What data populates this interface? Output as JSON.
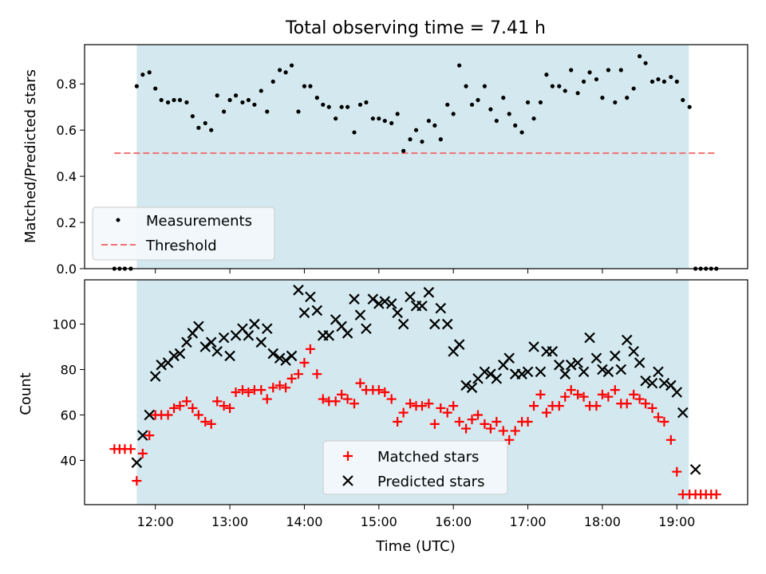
{
  "figure": {
    "title": "Total observing time = 7.41 h"
  },
  "chart_data": [
    {
      "type": "scatter",
      "ylabel": "Matched/Predicted stars",
      "xlabel": "",
      "x_unit": "hours (UTC)",
      "xlim": [
        11.05,
        19.95
      ],
      "ylim": [
        0.0,
        0.97
      ],
      "yticks": [
        0.0,
        0.2,
        0.4,
        0.6,
        0.8
      ],
      "ytick_labels": [
        "0.0",
        "0.2",
        "0.4",
        "0.6",
        "0.8"
      ],
      "shaded_interval": [
        11.75,
        19.16
      ],
      "shade_color": "#d3e9ef",
      "legend": {
        "placement": "lower-left"
      },
      "series": [
        {
          "name": "Measurements",
          "kind": "points",
          "color": "#000000",
          "x": [
            11.45,
            11.52,
            11.59,
            11.67,
            11.75,
            11.83,
            11.92,
            12.0,
            12.08,
            12.17,
            12.25,
            12.33,
            12.42,
            12.5,
            12.58,
            12.67,
            12.75,
            12.83,
            12.92,
            13.0,
            13.08,
            13.17,
            13.25,
            13.33,
            13.42,
            13.5,
            13.58,
            13.67,
            13.75,
            13.83,
            13.92,
            14.0,
            14.08,
            14.17,
            14.25,
            14.33,
            14.42,
            14.5,
            14.58,
            14.67,
            14.75,
            14.83,
            14.92,
            15.0,
            15.08,
            15.17,
            15.25,
            15.33,
            15.42,
            15.5,
            15.58,
            15.67,
            15.75,
            15.83,
            15.92,
            16.0,
            16.08,
            16.17,
            16.25,
            16.33,
            16.42,
            16.5,
            16.58,
            16.67,
            16.75,
            16.83,
            16.92,
            17.0,
            17.08,
            17.17,
            17.25,
            17.33,
            17.42,
            17.5,
            17.58,
            17.67,
            17.75,
            17.83,
            17.92,
            18.0,
            18.08,
            18.17,
            18.25,
            18.33,
            18.42,
            18.5,
            18.58,
            18.67,
            18.75,
            18.83,
            18.92,
            19.0,
            19.08,
            19.17,
            19.25,
            19.32,
            19.39,
            19.46,
            19.53
          ],
          "y": [
            0.0,
            0.0,
            0.0,
            0.0,
            0.79,
            0.84,
            0.85,
            0.78,
            0.73,
            0.72,
            0.73,
            0.73,
            0.72,
            0.66,
            0.61,
            0.63,
            0.6,
            0.75,
            0.68,
            0.73,
            0.75,
            0.72,
            0.73,
            0.71,
            0.77,
            0.68,
            0.81,
            0.86,
            0.85,
            0.88,
            0.68,
            0.79,
            0.79,
            0.74,
            0.71,
            0.7,
            0.65,
            0.7,
            0.7,
            0.59,
            0.71,
            0.72,
            0.65,
            0.65,
            0.64,
            0.63,
            0.67,
            0.51,
            0.56,
            0.6,
            0.55,
            0.64,
            0.62,
            0.56,
            0.71,
            0.67,
            0.88,
            0.79,
            0.71,
            0.73,
            0.79,
            0.69,
            0.64,
            0.74,
            0.67,
            0.62,
            0.59,
            0.72,
            0.65,
            0.72,
            0.84,
            0.79,
            0.79,
            0.77,
            0.86,
            0.76,
            0.81,
            0.85,
            0.82,
            0.74,
            0.86,
            0.72,
            0.86,
            0.74,
            0.78,
            0.92,
            0.89,
            0.81,
            0.82,
            0.81,
            0.83,
            0.81,
            0.73,
            0.7,
            0.0,
            0.0,
            0.0,
            0.0,
            0.0
          ]
        },
        {
          "name": "Threshold",
          "kind": "dashed-line",
          "color": "#f07070",
          "x": [
            11.45,
            19.53
          ],
          "y": [
            0.5,
            0.5
          ]
        }
      ]
    },
    {
      "type": "scatter",
      "ylabel": "Count",
      "xlabel": "Time (UTC)",
      "x_unit": "hours (UTC)",
      "xlim": [
        11.05,
        19.95
      ],
      "ylim": [
        20.5,
        119.5
      ],
      "yticks": [
        40,
        60,
        80,
        100
      ],
      "ytick_labels": [
        "40",
        "60",
        "80",
        "100"
      ],
      "xticks": [
        12,
        13,
        14,
        15,
        16,
        17,
        18,
        19
      ],
      "xtick_labels": [
        "12:00",
        "13:00",
        "14:00",
        "15:00",
        "16:00",
        "17:00",
        "18:00",
        "19:00"
      ],
      "shaded_interval": [
        11.75,
        19.16
      ],
      "shade_color": "#d3e9ef",
      "legend": {
        "placement": "lower-center"
      },
      "series": [
        {
          "name": "Matched stars",
          "marker": "plus",
          "color": "#ff0000",
          "x": [
            11.45,
            11.52,
            11.59,
            11.67,
            11.75,
            11.83,
            11.92,
            12.0,
            12.08,
            12.17,
            12.25,
            12.33,
            12.42,
            12.5,
            12.58,
            12.67,
            12.75,
            12.83,
            12.92,
            13.0,
            13.08,
            13.17,
            13.25,
            13.33,
            13.42,
            13.5,
            13.58,
            13.67,
            13.75,
            13.83,
            13.92,
            14.0,
            14.08,
            14.17,
            14.25,
            14.33,
            14.42,
            14.5,
            14.58,
            14.67,
            14.75,
            14.83,
            14.92,
            15.0,
            15.08,
            15.17,
            15.25,
            15.33,
            15.42,
            15.5,
            15.58,
            15.67,
            15.75,
            15.83,
            15.92,
            16.0,
            16.08,
            16.17,
            16.25,
            16.33,
            16.42,
            16.5,
            16.58,
            16.67,
            16.75,
            16.83,
            16.92,
            17.0,
            17.08,
            17.17,
            17.25,
            17.33,
            17.42,
            17.5,
            17.58,
            17.67,
            17.75,
            17.83,
            17.92,
            18.0,
            18.08,
            18.17,
            18.25,
            18.33,
            18.42,
            18.5,
            18.58,
            18.67,
            18.75,
            18.83,
            18.92,
            19.0,
            19.08,
            19.17,
            19.25,
            19.32,
            19.39,
            19.46,
            19.53
          ],
          "y": [
            45,
            45,
            45,
            45,
            31,
            43,
            51,
            60,
            60,
            60,
            63,
            64,
            66,
            63,
            60,
            57,
            56,
            66,
            64,
            63,
            70,
            71,
            70,
            71,
            71,
            67,
            72,
            73,
            72,
            76,
            78,
            83,
            89,
            78,
            67,
            66,
            66,
            69,
            67,
            65,
            74,
            71,
            71,
            71,
            70,
            67,
            57,
            61,
            65,
            64,
            64,
            65,
            56,
            63,
            61,
            64,
            57,
            54,
            58,
            60,
            56,
            54,
            57,
            53,
            49,
            53,
            57,
            57,
            64,
            69,
            61,
            64,
            64,
            68,
            71,
            69,
            68,
            64,
            64,
            69,
            68,
            71,
            65,
            65,
            69,
            67,
            65,
            63,
            59,
            57,
            49,
            35,
            25,
            25,
            25,
            25,
            25,
            25,
            25
          ],
          "note": ""
        },
        {
          "name": "Predicted stars",
          "marker": "x",
          "color": "#000000",
          "x": [
            11.75,
            11.83,
            11.92,
            12.0,
            12.08,
            12.17,
            12.25,
            12.33,
            12.42,
            12.5,
            12.58,
            12.67,
            12.75,
            12.83,
            12.92,
            13.0,
            13.08,
            13.17,
            13.25,
            13.33,
            13.42,
            13.5,
            13.58,
            13.67,
            13.75,
            13.83,
            13.92,
            14.0,
            14.08,
            14.17,
            14.25,
            14.33,
            14.42,
            14.5,
            14.58,
            14.67,
            14.75,
            14.83,
            14.92,
            15.0,
            15.08,
            15.17,
            15.25,
            15.33,
            15.42,
            15.5,
            15.58,
            15.67,
            15.75,
            15.83,
            15.92,
            16.0,
            16.08,
            16.17,
            16.25,
            16.33,
            16.42,
            16.5,
            16.58,
            16.67,
            16.75,
            16.83,
            16.92,
            17.0,
            17.08,
            17.17,
            17.25,
            17.33,
            17.42,
            17.5,
            17.58,
            17.67,
            17.75,
            17.83,
            17.92,
            18.0,
            18.08,
            18.17,
            18.25,
            18.33,
            18.42,
            18.5,
            18.58,
            18.67,
            18.75,
            18.83,
            18.92,
            19.0,
            19.08,
            19.25
          ],
          "y": [
            39,
            51,
            60,
            77,
            82,
            83,
            86,
            87,
            92,
            96,
            99,
            90,
            92,
            88,
            94,
            86,
            95,
            98,
            95,
            100,
            92,
            98,
            87,
            85,
            84,
            86,
            115,
            105,
            112,
            106,
            95,
            95,
            102,
            99,
            96,
            111,
            104,
            98,
            111,
            109,
            110,
            109,
            105,
            100,
            112,
            108,
            108,
            114,
            100,
            107,
            100,
            88,
            91,
            73,
            72,
            76,
            79,
            78,
            76,
            82,
            85,
            78,
            78,
            79,
            90,
            79,
            88,
            88,
            82,
            78,
            82,
            83,
            79,
            94,
            85,
            80,
            79,
            86,
            80,
            93,
            88,
            83,
            75,
            74,
            79,
            74,
            73,
            70,
            61,
            36
          ]
        }
      ]
    }
  ]
}
